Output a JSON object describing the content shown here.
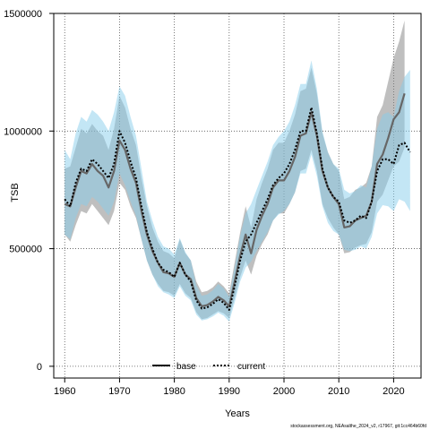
{
  "chart_data": {
    "type": "line",
    "xlabel": "Years",
    "ylabel": "TSB",
    "xlim": [
      1958,
      2025
    ],
    "ylim": [
      -50000,
      1500000
    ],
    "x_ticks": [
      1960,
      1970,
      1980,
      1990,
      2000,
      2010,
      2020
    ],
    "y_ticks": [
      0,
      500000,
      1000000,
      1500000
    ],
    "grid": true,
    "legend_position": "bottom-center",
    "footnote": "stockassessment.org, NEAsalthe_2024_v2, r17967, git:1cc464b60fd",
    "series": [
      {
        "name": "base",
        "color": "#808080",
        "line_color": "#000000",
        "line_style": "solid",
        "x": [
          1960,
          1961,
          1962,
          1963,
          1964,
          1965,
          1966,
          1967,
          1968,
          1969,
          1970,
          1971,
          1972,
          1973,
          1974,
          1975,
          1976,
          1977,
          1978,
          1979,
          1980,
          1981,
          1982,
          1983,
          1984,
          1985,
          1986,
          1987,
          1988,
          1989,
          1990,
          1991,
          1992,
          1993,
          1994,
          1995,
          1996,
          1997,
          1998,
          1999,
          2000,
          2001,
          2002,
          2003,
          2004,
          2005,
          2006,
          2007,
          2008,
          2009,
          2010,
          2011,
          2012,
          2013,
          2014,
          2015,
          2016,
          2017,
          2018,
          2019,
          2020,
          2021,
          2022
        ],
        "values": [
          690000,
          680000,
          760000,
          830000,
          820000,
          860000,
          830000,
          810000,
          760000,
          830000,
          960000,
          920000,
          840000,
          780000,
          660000,
          560000,
          490000,
          440000,
          400000,
          395000,
          380000,
          440000,
          390000,
          370000,
          290000,
          255000,
          260000,
          275000,
          295000,
          280000,
          255000,
          360000,
          470000,
          560000,
          480000,
          580000,
          640000,
          690000,
          760000,
          790000,
          790000,
          830000,
          890000,
          980000,
          990000,
          1080000,
          980000,
          830000,
          760000,
          720000,
          690000,
          590000,
          595000,
          620000,
          630000,
          640000,
          700000,
          860000,
          900000,
          970000,
          1050000,
          1080000,
          1160000
        ],
        "lower": [
          560000,
          530000,
          600000,
          660000,
          650000,
          690000,
          660000,
          630000,
          600000,
          660000,
          780000,
          750000,
          680000,
          630000,
          540000,
          450000,
          390000,
          350000,
          320000,
          315000,
          300000,
          350000,
          310000,
          290000,
          230000,
          200000,
          205000,
          220000,
          235000,
          225000,
          205000,
          290000,
          380000,
          450000,
          390000,
          470000,
          520000,
          560000,
          620000,
          650000,
          650000,
          690000,
          740000,
          830000,
          840000,
          920000,
          830000,
          690000,
          630000,
          590000,
          560000,
          480000,
          485000,
          505000,
          515000,
          520000,
          570000,
          700000,
          730000,
          790000,
          850000,
          870000,
          930000
        ],
        "upper": [
          840000,
          850000,
          930000,
          1010000,
          990000,
          1030000,
          1000000,
          980000,
          920000,
          1010000,
          1150000,
          1100000,
          1010000,
          940000,
          800000,
          680000,
          590000,
          530000,
          490000,
          480000,
          460000,
          540000,
          480000,
          450000,
          360000,
          315000,
          320000,
          335000,
          360000,
          340000,
          310000,
          440000,
          570000,
          680000,
          590000,
          710000,
          780000,
          840000,
          920000,
          950000,
          950000,
          1000000,
          1070000,
          1170000,
          1180000,
          1270000,
          1160000,
          990000,
          910000,
          860000,
          830000,
          710000,
          720000,
          750000,
          760000,
          780000,
          850000,
          1060000,
          1110000,
          1210000,
          1310000,
          1380000,
          1470000
        ]
      },
      {
        "name": "current",
        "color": "#87CEEB",
        "line_color": "#000000",
        "line_style": "dotted",
        "x": [
          1960,
          1961,
          1962,
          1963,
          1964,
          1965,
          1966,
          1967,
          1968,
          1969,
          1970,
          1971,
          1972,
          1973,
          1974,
          1975,
          1976,
          1977,
          1978,
          1979,
          1980,
          1981,
          1982,
          1983,
          1984,
          1985,
          1986,
          1987,
          1988,
          1989,
          1990,
          1991,
          1992,
          1993,
          1994,
          1995,
          1996,
          1997,
          1998,
          1999,
          2000,
          2001,
          2002,
          2003,
          2004,
          2005,
          2006,
          2007,
          2008,
          2009,
          2010,
          2011,
          2012,
          2013,
          2014,
          2015,
          2016,
          2017,
          2018,
          2019,
          2020,
          2021,
          2022,
          2023
        ],
        "values": [
          710000,
          680000,
          780000,
          840000,
          830000,
          880000,
          860000,
          830000,
          800000,
          860000,
          1000000,
          950000,
          870000,
          800000,
          680000,
          570000,
          500000,
          440000,
          410000,
          400000,
          380000,
          440000,
          390000,
          360000,
          280000,
          245000,
          250000,
          265000,
          285000,
          270000,
          240000,
          340000,
          450000,
          530000,
          560000,
          610000,
          660000,
          710000,
          770000,
          800000,
          820000,
          860000,
          920000,
          1000000,
          1000000,
          1100000,
          990000,
          840000,
          760000,
          720000,
          700000,
          620000,
          610000,
          620000,
          640000,
          630000,
          700000,
          830000,
          880000,
          880000,
          860000,
          940000,
          950000,
          910000
        ],
        "lower": [
          560000,
          540000,
          630000,
          690000,
          680000,
          720000,
          700000,
          670000,
          640000,
          700000,
          820000,
          770000,
          700000,
          640000,
          540000,
          450000,
          390000,
          340000,
          315000,
          305000,
          290000,
          340000,
          300000,
          280000,
          220000,
          195000,
          200000,
          212000,
          228000,
          215000,
          190000,
          270000,
          360000,
          420000,
          445000,
          490000,
          530000,
          570000,
          620000,
          645000,
          660000,
          690000,
          740000,
          820000,
          820000,
          900000,
          810000,
          680000,
          610000,
          575000,
          560000,
          495000,
          490000,
          495000,
          510000,
          500000,
          550000,
          650000,
          685000,
          680000,
          660000,
          710000,
          700000,
          660000
        ],
        "upper": [
          920000,
          880000,
          990000,
          1060000,
          1040000,
          1090000,
          1070000,
          1040000,
          1000000,
          1080000,
          1190000,
          1150000,
          1060000,
          980000,
          840000,
          700000,
          620000,
          550000,
          510000,
          500000,
          475000,
          545000,
          485000,
          450000,
          345000,
          300000,
          305000,
          323000,
          350000,
          332000,
          295000,
          420000,
          555000,
          650000,
          690000,
          750000,
          810000,
          870000,
          940000,
          975000,
          1000000,
          1040000,
          1110000,
          1200000,
          1200000,
          1300000,
          1180000,
          1000000,
          910000,
          860000,
          840000,
          750000,
          735000,
          745000,
          770000,
          760000,
          850000,
          1010000,
          1070000,
          1080000,
          1060000,
          1170000,
          1230000,
          1260000
        ]
      }
    ]
  }
}
